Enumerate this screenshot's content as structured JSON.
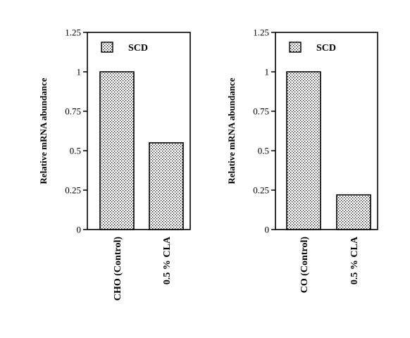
{
  "chart_data": [
    {
      "type": "bar",
      "categories": [
        "CHO (Control)",
        "0.5 % CLA"
      ],
      "series": [
        {
          "name": "SCD",
          "values": [
            1.0,
            0.55
          ]
        }
      ],
      "ylabel": "Relative mRNA abundance",
      "ylim": [
        0,
        1.25
      ],
      "yticks": [
        0,
        0.25,
        0.5,
        0.75,
        1,
        1.25
      ],
      "ytick_labels": [
        "0",
        "0.25",
        "0.5",
        "0.75",
        "1",
        "1.25"
      ],
      "grid": false,
      "legend": "top-left",
      "bar_fill": "stippled grey"
    },
    {
      "type": "bar",
      "categories": [
        "CO (Control)",
        "0.5 % CLA"
      ],
      "series": [
        {
          "name": "SCD",
          "values": [
            1.0,
            0.22
          ]
        }
      ],
      "ylabel": "Relative mRNA abundance",
      "ylim": [
        0,
        1.25
      ],
      "yticks": [
        0,
        0.25,
        0.5,
        0.75,
        1,
        1.25
      ],
      "ytick_labels": [
        "0",
        "0.25",
        "0.5",
        "0.75",
        "1",
        "1.25"
      ],
      "grid": false,
      "legend": "top-left",
      "bar_fill": "stippled grey"
    }
  ]
}
